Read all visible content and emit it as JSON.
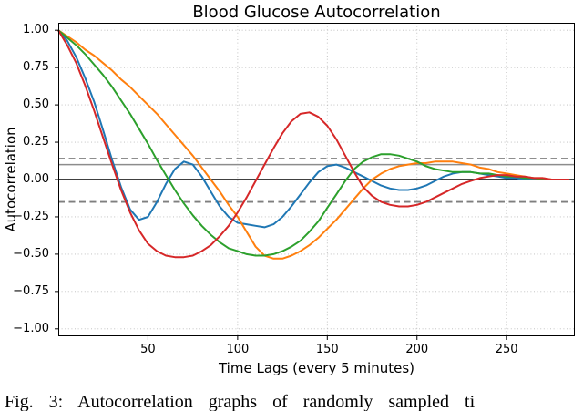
{
  "figure": {
    "caption": "Fig. 3: Autocorrelation graphs of randomly sampled ti"
  },
  "chart_data": {
    "type": "line",
    "title": "Blood Glucose Autocorrelation",
    "xlabel": "Time Lags (every 5 minutes)",
    "ylabel": "Autocorrelation",
    "xlim": [
      0,
      288
    ],
    "ylim": [
      -1.05,
      1.05
    ],
    "grid": true,
    "legend": "none",
    "x_ticks": [
      50,
      100,
      150,
      200,
      250
    ],
    "x_tick_labels": [
      "50",
      "100",
      "150",
      "200",
      "250"
    ],
    "y_ticks": [
      1.0,
      0.75,
      0.5,
      0.25,
      0.0,
      -0.25,
      -0.5,
      -0.75,
      -1.0
    ],
    "y_tick_labels": [
      "1.00",
      "0.75",
      "0.50",
      "0.25",
      "0.00",
      "−0.25",
      "−0.50",
      "−0.75",
      "−1.00"
    ],
    "reference_lines": [
      {
        "name": "zero-line",
        "y": 0.0,
        "color": "#000000",
        "style": "solid",
        "width": 1.5
      },
      {
        "name": "upper-solid-bound",
        "y": 0.1,
        "color": "#8c8c8c",
        "style": "solid",
        "width": 1.5
      },
      {
        "name": "upper-dashed-bound",
        "y": 0.14,
        "color": "#7f7f7f",
        "style": "dashed",
        "width": 1.8
      },
      {
        "name": "lower-dashed-bound",
        "y": -0.15,
        "color": "#7f7f7f",
        "style": "dashed",
        "width": 1.8
      }
    ],
    "x": [
      0,
      5,
      10,
      15,
      20,
      25,
      30,
      35,
      40,
      45,
      50,
      55,
      60,
      65,
      70,
      75,
      80,
      85,
      90,
      95,
      100,
      105,
      110,
      115,
      120,
      125,
      130,
      135,
      140,
      145,
      150,
      155,
      160,
      165,
      170,
      175,
      180,
      185,
      190,
      195,
      200,
      205,
      210,
      215,
      220,
      225,
      230,
      235,
      240,
      245,
      250,
      255,
      260,
      265,
      270,
      275,
      280,
      285
    ],
    "series": [
      {
        "name": "series-blue",
        "color": "#1f77b4",
        "y": [
          1.0,
          0.93,
          0.82,
          0.68,
          0.52,
          0.33,
          0.13,
          -0.05,
          -0.2,
          -0.27,
          -0.25,
          -0.15,
          -0.03,
          0.07,
          0.12,
          0.1,
          0.02,
          -0.08,
          -0.18,
          -0.25,
          -0.29,
          -0.3,
          -0.31,
          -0.32,
          -0.3,
          -0.25,
          -0.18,
          -0.1,
          -0.02,
          0.05,
          0.09,
          0.1,
          0.08,
          0.05,
          0.02,
          -0.01,
          -0.04,
          -0.06,
          -0.07,
          -0.07,
          -0.06,
          -0.04,
          -0.01,
          0.02,
          0.04,
          0.05,
          0.05,
          0.04,
          0.03,
          0.02,
          0.01,
          0.01,
          0.0,
          0.0,
          0.0,
          0.0,
          0.0,
          0.0
        ]
      },
      {
        "name": "series-orange",
        "color": "#ff7f0e",
        "y": [
          1.0,
          0.96,
          0.92,
          0.87,
          0.83,
          0.78,
          0.73,
          0.67,
          0.62,
          0.56,
          0.5,
          0.44,
          0.37,
          0.3,
          0.23,
          0.16,
          0.08,
          0.0,
          -0.08,
          -0.17,
          -0.25,
          -0.35,
          -0.45,
          -0.51,
          -0.53,
          -0.53,
          -0.51,
          -0.48,
          -0.44,
          -0.39,
          -0.33,
          -0.27,
          -0.2,
          -0.13,
          -0.06,
          0.0,
          0.04,
          0.07,
          0.09,
          0.1,
          0.11,
          0.11,
          0.12,
          0.12,
          0.12,
          0.11,
          0.1,
          0.08,
          0.07,
          0.05,
          0.04,
          0.03,
          0.02,
          0.01,
          0.01,
          0.0,
          0.0,
          0.0
        ]
      },
      {
        "name": "series-green",
        "color": "#2ca02c",
        "y": [
          1.0,
          0.95,
          0.9,
          0.84,
          0.77,
          0.7,
          0.62,
          0.53,
          0.44,
          0.34,
          0.24,
          0.13,
          0.03,
          -0.07,
          -0.16,
          -0.24,
          -0.31,
          -0.37,
          -0.42,
          -0.46,
          -0.48,
          -0.5,
          -0.51,
          -0.51,
          -0.5,
          -0.48,
          -0.45,
          -0.41,
          -0.35,
          -0.28,
          -0.19,
          -0.1,
          -0.01,
          0.07,
          0.12,
          0.15,
          0.17,
          0.17,
          0.16,
          0.14,
          0.12,
          0.09,
          0.07,
          0.06,
          0.05,
          0.05,
          0.05,
          0.04,
          0.04,
          0.03,
          0.02,
          0.02,
          0.01,
          0.01,
          0.0,
          0.0,
          0.0,
          0.0
        ]
      },
      {
        "name": "series-red",
        "color": "#d62728",
        "y": [
          1.0,
          0.9,
          0.78,
          0.63,
          0.46,
          0.28,
          0.1,
          -0.07,
          -0.22,
          -0.34,
          -0.43,
          -0.48,
          -0.51,
          -0.52,
          -0.52,
          -0.51,
          -0.48,
          -0.44,
          -0.38,
          -0.31,
          -0.22,
          -0.12,
          -0.01,
          0.1,
          0.21,
          0.31,
          0.39,
          0.44,
          0.45,
          0.42,
          0.36,
          0.27,
          0.16,
          0.05,
          -0.05,
          -0.11,
          -0.15,
          -0.17,
          -0.18,
          -0.18,
          -0.17,
          -0.15,
          -0.12,
          -0.09,
          -0.06,
          -0.03,
          -0.01,
          0.01,
          0.02,
          0.03,
          0.03,
          0.02,
          0.02,
          0.01,
          0.01,
          0.0,
          0.0,
          0.0
        ]
      }
    ]
  }
}
